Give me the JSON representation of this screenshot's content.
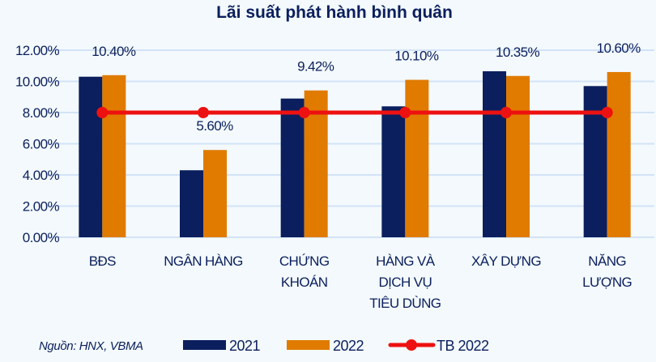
{
  "chart_data": {
    "type": "bar",
    "title": "Lãi suất phát hành bình quân",
    "categories": [
      [
        "BĐS"
      ],
      [
        "NGÂN HÀNG"
      ],
      [
        "CHỨNG",
        "KHOÁN"
      ],
      [
        "HÀNG VÀ",
        "DỊCH VỤ",
        "TIÊU DÙNG"
      ],
      [
        "XÂY DỰNG"
      ],
      [
        "NĂNG",
        "LƯỢNG"
      ]
    ],
    "series": [
      {
        "name": "2021",
        "type": "bar",
        "color": "#0b1f5e",
        "values": [
          10.3,
          4.3,
          8.9,
          8.4,
          10.65,
          9.7
        ]
      },
      {
        "name": "2022",
        "type": "bar",
        "color": "#e07b00",
        "values": [
          10.4,
          5.6,
          9.42,
          10.1,
          10.35,
          10.6
        ]
      },
      {
        "name": "TB 2022",
        "type": "line",
        "color": "#ee1111",
        "values": [
          8.0,
          8.0,
          8.0,
          8.0,
          8.0,
          8.0
        ]
      }
    ],
    "data_labels": [
      "10.40%",
      "5.60%",
      "9.42%",
      "10.10%",
      "10.35%",
      "10.60%"
    ],
    "yticks": [
      "0.00%",
      "2.00%",
      "4.00%",
      "6.00%",
      "8.00%",
      "10.00%",
      "12.00%"
    ],
    "ylim": [
      0,
      12
    ],
    "grid": true,
    "legend": "bottom",
    "source": "Nguồn: HNX, VBMA"
  }
}
